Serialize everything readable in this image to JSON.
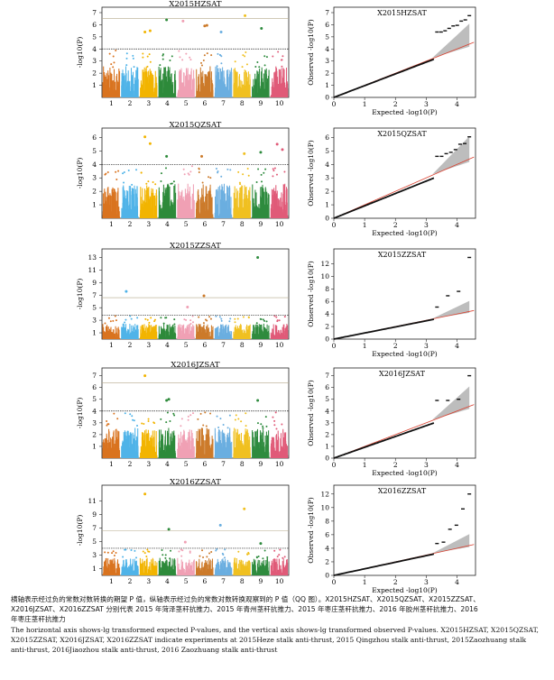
{
  "chromosomes": [
    "1",
    "2",
    "3",
    "4",
    "5",
    "6",
    "7",
    "8",
    "9",
    "10"
  ],
  "chrom_colors": [
    "#d9731f",
    "#4fb3e8",
    "#f2b400",
    "#2d8a3a",
    "#f0a0b4",
    "#cc7a2a",
    "#6aaee0",
    "#f0c020",
    "#2e8b3e",
    "#e05a78"
  ],
  "manhattan_ylabel": "-log10(P)",
  "qq_ylabel": "Observed -log10(P)",
  "qq_xlabel": "Expected -log10(P)",
  "panels": [
    {
      "id": "hz",
      "title": "X2015HZSAT",
      "m_yticks": [
        "1",
        "2",
        "3",
        "4",
        "5",
        "6",
        "7"
      ],
      "m_ymax": 7,
      "sig": 4,
      "thr2": 6.5,
      "q_yticks": [
        "0",
        "1",
        "2",
        "3",
        "4",
        "5",
        "6",
        "7"
      ],
      "q_ymax": 7,
      "q_xticks": [
        "0",
        "1",
        "2",
        "3",
        "4"
      ],
      "peaks": [
        [
          3,
          5.4
        ],
        [
          3,
          5.5
        ],
        [
          4,
          6.4
        ],
        [
          5,
          6.3
        ],
        [
          6,
          5.95
        ],
        [
          6,
          5.9
        ],
        [
          7,
          5.4
        ],
        [
          8,
          6.75
        ],
        [
          9,
          5.7
        ]
      ]
    },
    {
      "id": "qz",
      "title": "X2015QZSAT",
      "m_yticks": [
        "1",
        "2",
        "3",
        "4",
        "5",
        "6"
      ],
      "m_ymax": 6.3,
      "sig": 4,
      "thr2": null,
      "q_yticks": [
        "0",
        "1",
        "2",
        "3",
        "4",
        "5",
        "6"
      ],
      "q_ymax": 6.3,
      "q_xticks": [
        "0",
        "1",
        "2",
        "3",
        "4"
      ],
      "peaks": [
        [
          3,
          6.05
        ],
        [
          3,
          5.55
        ],
        [
          4,
          4.6
        ],
        [
          6,
          4.6
        ],
        [
          8,
          4.8
        ],
        [
          9,
          4.9
        ],
        [
          10,
          5.5
        ],
        [
          10,
          5.1
        ]
      ]
    },
    {
      "id": "zz",
      "title": "X2015ZZSAT",
      "m_yticks": [
        "1",
        "3",
        "5",
        "7",
        "9",
        "11",
        "13"
      ],
      "m_ymax": 13.5,
      "sig": 3.8,
      "thr2": 6.6,
      "q_yticks": [
        "0",
        "2",
        "4",
        "6",
        "8",
        "10",
        "12"
      ],
      "q_ymax": 13.5,
      "q_xticks": [
        "0",
        "1",
        "2",
        "3",
        "4"
      ],
      "peaks": [
        [
          2,
          7.6
        ],
        [
          5,
          5.1
        ],
        [
          6,
          6.9
        ],
        [
          9,
          13
        ]
      ]
    },
    {
      "id": "jz",
      "title": "X2016JZSAT",
      "m_yticks": [
        "1",
        "2",
        "3",
        "4",
        "5",
        "6",
        "7"
      ],
      "m_ymax": 7.2,
      "sig": 4,
      "thr2": 6.4,
      "q_yticks": [
        "0",
        "1",
        "2",
        "3",
        "4",
        "5",
        "6",
        "7"
      ],
      "q_ymax": 7.2,
      "q_xticks": [
        "0",
        "1",
        "2",
        "3",
        "4"
      ],
      "peaks": [
        [
          3,
          7
        ],
        [
          4,
          5
        ],
        [
          4,
          4.9
        ],
        [
          9,
          4.9
        ]
      ]
    },
    {
      "id": "zz16",
      "title": "X2016ZZSAT",
      "m_yticks": [
        "1",
        "3",
        "5",
        "7",
        "9",
        "11"
      ],
      "m_ymax": 12.5,
      "sig": 4,
      "thr2": 6.6,
      "q_yticks": [
        "0",
        "2",
        "4",
        "6",
        "8",
        "10",
        "12"
      ],
      "q_ymax": 12.5,
      "q_xticks": [
        "0",
        "1",
        "2",
        "3",
        "4"
      ],
      "peaks": [
        [
          3,
          12
        ],
        [
          4,
          6.8
        ],
        [
          5,
          4.9
        ],
        [
          7,
          7.4
        ],
        [
          8,
          9.8
        ],
        [
          9,
          4.7
        ]
      ]
    }
  ],
  "caption": {
    "cn1": "横轴表示经过负的常数对数转换的期望 P 值，纵轴表示经过负的常数对数转换观察到的 P 值（QQ 图）。X2015HZSAT、X2015QZSAT、X2015ZZSAT、",
    "cn2": "X2016JZSAT、X2016ZZSAT 分别代表 2015 年菏泽茎秆抗推力、2015 年青州茎秆抗推力、2015 年枣庄茎秆抗推力、2016 年胶州茎秆抗推力、2016",
    "cn3": "年枣庄茎秆抗推力",
    "en1": "The horizontal axis shows-lg transformed expected P-values, and the vertical axis shows-lg transformed observed P-values. X2015HZSAT, X2015QZSAT,",
    "en2": "X2015ZZSAT, X2016JZSAT, X2016ZZSAT indicate experiments at 2015Heze stalk anti-thrust, 2015 Qingzhou stalk anti-thrust, 2015Zaozhuang stalk",
    "en3": "anti-thrust, 2016Jiaozhou stalk anti-thrust, 2016 Zaozhuang stalk anti-thrust"
  }
}
